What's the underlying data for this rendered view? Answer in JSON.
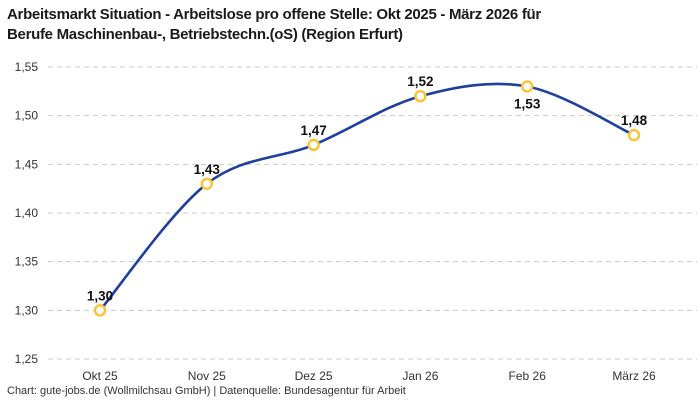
{
  "title_line1": "Arbeitsmarkt Situation - Arbeitslose pro offene Stelle: Okt 2025 - März 2026 für",
  "title_line2": "Berufe Maschinenbau-, Betriebstechn.(oS) (Region Erfurt)",
  "footer": "Chart: gute-jobs.de (Wollmilchsau GmbH) | Datenquelle: Bundesagentur für Arbeit",
  "chart_data": {
    "type": "line",
    "title": "Arbeitsmarkt Situation - Arbeitslose pro offene Stelle: Okt 2025 - März 2026 für Berufe Maschinenbau-, Betriebstechn.(oS) (Region Erfurt)",
    "categories": [
      "Okt 25",
      "Nov 25",
      "Dez 25",
      "Jan 26",
      "Feb 26",
      "März 26"
    ],
    "values": [
      1.3,
      1.43,
      1.47,
      1.52,
      1.53,
      1.48
    ],
    "point_labels": [
      "1,30",
      "1,43",
      "1,47",
      "1,52",
      "1,53",
      "1,48"
    ],
    "label_positions": [
      "above",
      "above",
      "above",
      "above",
      "below",
      "above"
    ],
    "y_tick_labels": [
      "1,55",
      "1,50",
      "1,45",
      "1,40",
      "1,35",
      "1,30",
      "1,25"
    ],
    "y_tick_values": [
      1.55,
      1.5,
      1.45,
      1.4,
      1.35,
      1.3,
      1.25
    ],
    "ylim": [
      1.25,
      1.55
    ],
    "xlabel": "",
    "ylabel": "",
    "grid": "horizontal-dashed",
    "legend": "none",
    "line_style": "smooth",
    "colors": {
      "line": "#1F3F9C",
      "marker_ring": "#FDC230",
      "marker_fill": "#FFFFFF",
      "grid": "#C9C9C9",
      "title": "#1A1A1A",
      "axis_labels": "#333333",
      "data_labels": "#111111",
      "background": "#FFFFFF"
    }
  }
}
